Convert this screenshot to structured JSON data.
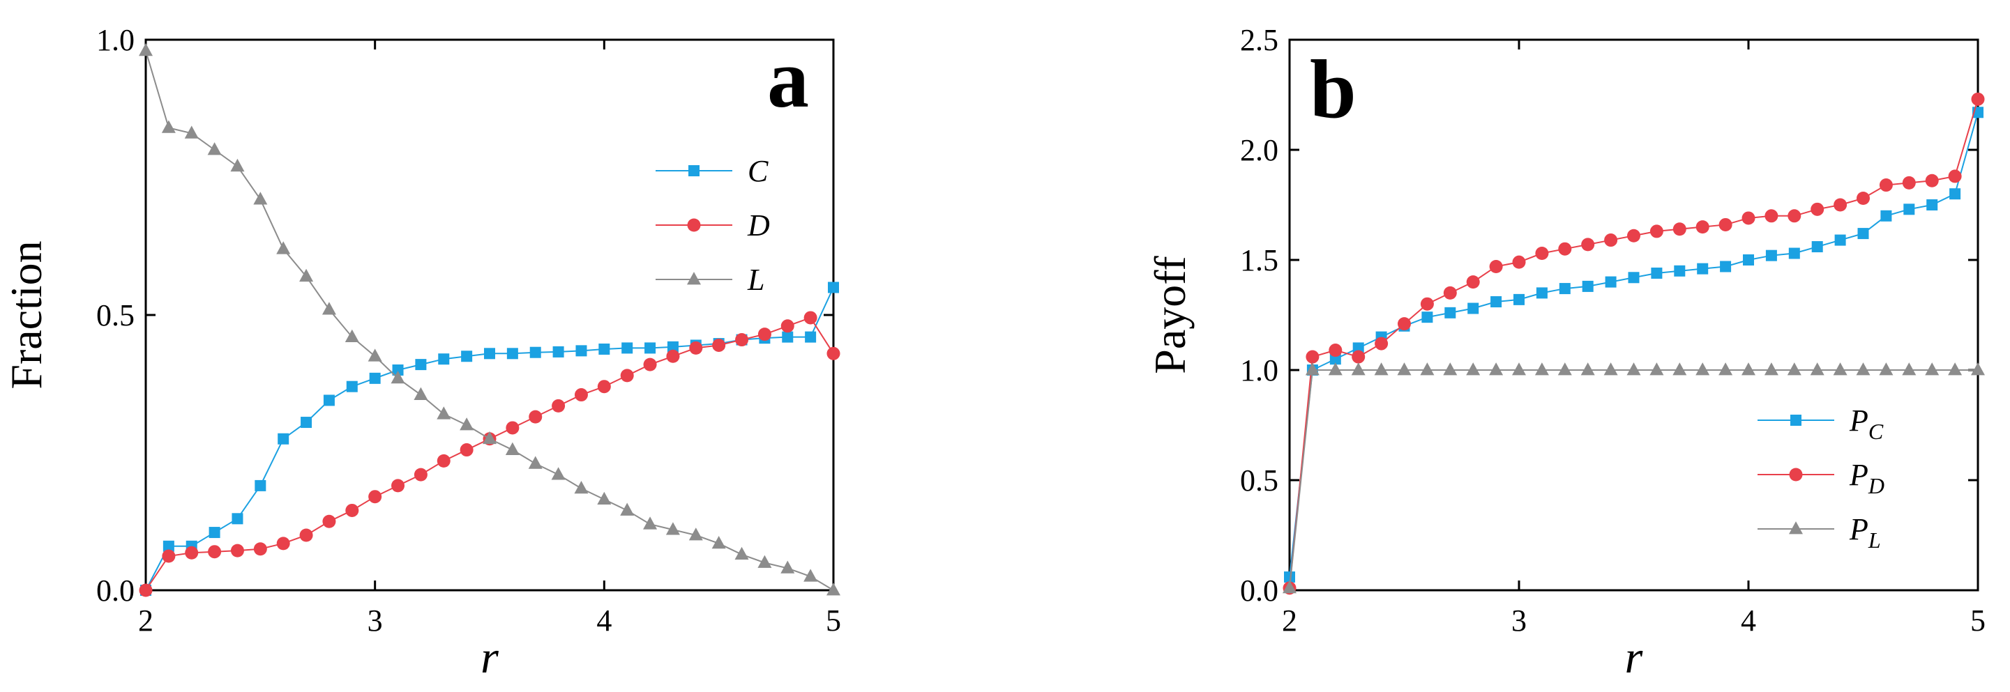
{
  "colors": {
    "C": "#1ba1e2",
    "D": "#e8404a",
    "L": "#8c8c8c",
    "axis": "#000000"
  },
  "chart_data": [
    {
      "id": "a",
      "type": "line",
      "panel_label": "a",
      "xlabel": "r",
      "ylabel": "Fraction",
      "xlim": [
        2,
        5
      ],
      "ylim": [
        0,
        1
      ],
      "xticks": [
        "2",
        "3",
        "4",
        "5"
      ],
      "yticks": [
        "0.0",
        "0.5",
        "1.0"
      ],
      "xtick_values": [
        2,
        3,
        4,
        5
      ],
      "ytick_values": [
        0,
        0.5,
        1.0
      ],
      "legend_position": "upper-right",
      "x": [
        2.0,
        2.1,
        2.2,
        2.3,
        2.4,
        2.5,
        2.6,
        2.7,
        2.8,
        2.9,
        3.0,
        3.1,
        3.2,
        3.3,
        3.4,
        3.5,
        3.6,
        3.7,
        3.8,
        3.9,
        4.0,
        4.1,
        4.2,
        4.3,
        4.4,
        4.5,
        4.6,
        4.7,
        4.8,
        4.9,
        5.0
      ],
      "series": [
        {
          "name": "C",
          "marker": "square",
          "color": "#1ba1e2",
          "values": [
            0.0,
            0.08,
            0.08,
            0.105,
            0.13,
            0.19,
            0.275,
            0.305,
            0.345,
            0.37,
            0.385,
            0.4,
            0.41,
            0.42,
            0.425,
            0.43,
            0.43,
            0.432,
            0.433,
            0.435,
            0.438,
            0.44,
            0.44,
            0.442,
            0.445,
            0.448,
            0.455,
            0.458,
            0.46,
            0.46,
            0.55
          ]
        },
        {
          "name": "D",
          "marker": "circle",
          "color": "#e8404a",
          "values": [
            0.0,
            0.062,
            0.068,
            0.07,
            0.072,
            0.075,
            0.085,
            0.1,
            0.125,
            0.145,
            0.17,
            0.19,
            0.21,
            0.235,
            0.255,
            0.275,
            0.295,
            0.315,
            0.335,
            0.355,
            0.37,
            0.39,
            0.41,
            0.425,
            0.44,
            0.445,
            0.455,
            0.465,
            0.48,
            0.495,
            0.43
          ]
        },
        {
          "name": "L",
          "marker": "triangle",
          "color": "#8c8c8c",
          "values": [
            0.98,
            0.84,
            0.83,
            0.8,
            0.77,
            0.71,
            0.62,
            0.57,
            0.51,
            0.46,
            0.425,
            0.385,
            0.355,
            0.32,
            0.3,
            0.275,
            0.255,
            0.23,
            0.21,
            0.185,
            0.165,
            0.145,
            0.12,
            0.11,
            0.1,
            0.085,
            0.065,
            0.05,
            0.04,
            0.025,
            0.0
          ]
        }
      ]
    },
    {
      "id": "b",
      "type": "line",
      "panel_label": "b",
      "xlabel": "r",
      "ylabel": "Payoff",
      "xlim": [
        2,
        5
      ],
      "ylim": [
        0,
        2.5
      ],
      "xticks": [
        "2",
        "3",
        "4",
        "5"
      ],
      "yticks": [
        "0.0",
        "0.5",
        "1.0",
        "1.5",
        "2.0",
        "2.5"
      ],
      "xtick_values": [
        2,
        3,
        4,
        5
      ],
      "ytick_values": [
        0,
        0.5,
        1.0,
        1.5,
        2.0,
        2.5
      ],
      "legend_position": "lower-right",
      "x": [
        2.0,
        2.1,
        2.2,
        2.3,
        2.4,
        2.5,
        2.6,
        2.7,
        2.8,
        2.9,
        3.0,
        3.1,
        3.2,
        3.3,
        3.4,
        3.5,
        3.6,
        3.7,
        3.8,
        3.9,
        4.0,
        4.1,
        4.2,
        4.3,
        4.4,
        4.5,
        4.6,
        4.7,
        4.8,
        4.9,
        5.0
      ],
      "series": [
        {
          "name": "P",
          "sub": "C",
          "marker": "square",
          "color": "#1ba1e2",
          "values": [
            0.06,
            1.0,
            1.05,
            1.1,
            1.15,
            1.2,
            1.24,
            1.26,
            1.28,
            1.31,
            1.32,
            1.35,
            1.37,
            1.38,
            1.4,
            1.42,
            1.44,
            1.45,
            1.46,
            1.47,
            1.5,
            1.52,
            1.53,
            1.56,
            1.59,
            1.62,
            1.7,
            1.73,
            1.75,
            1.8,
            2.17
          ]
        },
        {
          "name": "P",
          "sub": "D",
          "marker": "circle",
          "color": "#e8404a",
          "values": [
            0.01,
            1.06,
            1.09,
            1.06,
            1.12,
            1.21,
            1.3,
            1.35,
            1.4,
            1.47,
            1.49,
            1.53,
            1.55,
            1.57,
            1.59,
            1.61,
            1.63,
            1.64,
            1.65,
            1.66,
            1.69,
            1.7,
            1.7,
            1.73,
            1.75,
            1.78,
            1.84,
            1.85,
            1.86,
            1.88,
            2.23
          ]
        },
        {
          "name": "P",
          "sub": "L",
          "marker": "triangle",
          "color": "#8c8c8c",
          "values": [
            0.01,
            1.0,
            1.0,
            1.0,
            1.0,
            1.0,
            1.0,
            1.0,
            1.0,
            1.0,
            1.0,
            1.0,
            1.0,
            1.0,
            1.0,
            1.0,
            1.0,
            1.0,
            1.0,
            1.0,
            1.0,
            1.0,
            1.0,
            1.0,
            1.0,
            1.0,
            1.0,
            1.0,
            1.0,
            1.0,
            1.0
          ]
        }
      ]
    }
  ]
}
